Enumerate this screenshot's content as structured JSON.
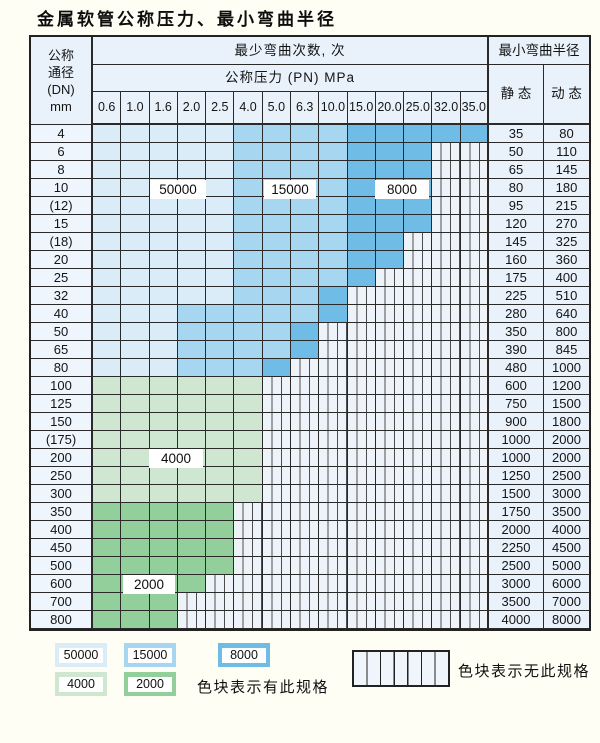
{
  "title": "金属软管公称压力、最小弯曲半径",
  "table": {
    "header": {
      "dn_lines": [
        "公称",
        "通径",
        "(DN)",
        "mm"
      ],
      "bend_cycles": "最少弯曲次数, 次",
      "pressure": "公称压力 (PN) MPa",
      "pressure_cols": [
        "0.6",
        "1.0",
        "1.6",
        "2.0",
        "2.5",
        "4.0",
        "5.0",
        "6.3",
        "10.0",
        "15.0",
        "20.0",
        "25.0",
        "32.0",
        "35.0"
      ],
      "radius": "最小弯曲半径",
      "static": "静 态",
      "dynamic": "动 态"
    },
    "code_legend": {
      "L": "50000次",
      "M": "15000次",
      "D": "8000次",
      "g": "4000次",
      "G": "2000次",
      "N": "无此规格"
    },
    "rows": [
      {
        "dn": "4",
        "cells": "LLLLLMMMMDDDDD",
        "static": "35",
        "dynamic": "80"
      },
      {
        "dn": "6",
        "cells": "LLLLLMMMMDDDNN",
        "static": "50",
        "dynamic": "110"
      },
      {
        "dn": "8",
        "cells": "LLLLLMMMMDDDNN",
        "static": "65",
        "dynamic": "145"
      },
      {
        "dn": "10",
        "cells": "LLLLLMMMMDDDNN",
        "static": "80",
        "dynamic": "180"
      },
      {
        "dn": "(12)",
        "cells": "LLLLLMMMMDDDNN",
        "static": "95",
        "dynamic": "215"
      },
      {
        "dn": "15",
        "cells": "LLLLLMMMMDDDNN",
        "static": "120",
        "dynamic": "270"
      },
      {
        "dn": "(18)",
        "cells": "LLLLLMMMMDDNNN",
        "static": "145",
        "dynamic": "325"
      },
      {
        "dn": "20",
        "cells": "LLLLLMMMMDDNNN",
        "static": "160",
        "dynamic": "360"
      },
      {
        "dn": "25",
        "cells": "LLLLLMMMMDNNNN",
        "static": "175",
        "dynamic": "400"
      },
      {
        "dn": "32",
        "cells": "LLLLLMMMDNNNNN",
        "static": "225",
        "dynamic": "510"
      },
      {
        "dn": "40",
        "cells": "LLLMMMMMDNNNNN",
        "static": "280",
        "dynamic": "640"
      },
      {
        "dn": "50",
        "cells": "LLLMMMMDNNNNNN",
        "static": "350",
        "dynamic": "800"
      },
      {
        "dn": "65",
        "cells": "LLLMMMMDNNNNNN",
        "static": "390",
        "dynamic": "845"
      },
      {
        "dn": "80",
        "cells": "LLLMMMDNNNNNNN",
        "static": "480",
        "dynamic": "1000"
      },
      {
        "dn": "100",
        "cells": "ggggggNNNNNNNN",
        "static": "600",
        "dynamic": "1200"
      },
      {
        "dn": "125",
        "cells": "ggggggNNNNNNNN",
        "static": "750",
        "dynamic": "1500"
      },
      {
        "dn": "150",
        "cells": "ggggggNNNNNNNN",
        "static": "900",
        "dynamic": "1800"
      },
      {
        "dn": "(175)",
        "cells": "ggggggNNNNNNNN",
        "static": "1000",
        "dynamic": "2000"
      },
      {
        "dn": "200",
        "cells": "ggggggNNNNNNNN",
        "static": "1000",
        "dynamic": "2000"
      },
      {
        "dn": "250",
        "cells": "ggggggNNNNNNNN",
        "static": "1250",
        "dynamic": "2500"
      },
      {
        "dn": "300",
        "cells": "ggggggNNNNNNNN",
        "static": "1500",
        "dynamic": "3000"
      },
      {
        "dn": "350",
        "cells": "GGGGGNNNNNNNNN",
        "static": "1750",
        "dynamic": "3500"
      },
      {
        "dn": "400",
        "cells": "GGGGGNNNNNNNNN",
        "static": "2000",
        "dynamic": "4000"
      },
      {
        "dn": "450",
        "cells": "GGGGGNNNNNNNNN",
        "static": "2250",
        "dynamic": "4500"
      },
      {
        "dn": "500",
        "cells": "GGGGGNNNNNNNNN",
        "static": "2500",
        "dynamic": "5000"
      },
      {
        "dn": "600",
        "cells": "GGGGNNNNNNNNNN",
        "static": "3000",
        "dynamic": "6000"
      },
      {
        "dn": "700",
        "cells": "GGGNNNNNNNNNNN",
        "static": "3500",
        "dynamic": "7000"
      },
      {
        "dn": "800",
        "cells": "GGGNNNNNNNNNNN",
        "static": "4000",
        "dynamic": "8000"
      }
    ]
  },
  "overlays": [
    {
      "text": "50000"
    },
    {
      "text": "15000"
    },
    {
      "text": "8000"
    },
    {
      "text": "4000"
    },
    {
      "text": "2000"
    }
  ],
  "legend": {
    "items": [
      {
        "label": "50000",
        "code": "L"
      },
      {
        "label": "15000",
        "code": "M"
      },
      {
        "label": "8000",
        "code": "D"
      },
      {
        "label": "4000",
        "code": "g"
      },
      {
        "label": "2000",
        "code": "G"
      }
    ],
    "has_spec_text": "色块表示有此规格",
    "no_spec_text": "色块表示无此规格"
  },
  "colors": {
    "cycles_50000": "#d9ecf8",
    "cycles_15000": "#a6d6f0",
    "cycles_8000": "#6fbce7",
    "cycles_4000": "#cfe6d0",
    "cycles_2000": "#92cf9b",
    "no_spec_bg": "#eef3fa",
    "header_bg": "#e9f2fb",
    "grid_line": "#2a2a2a",
    "page_bg": "#fffef4"
  }
}
